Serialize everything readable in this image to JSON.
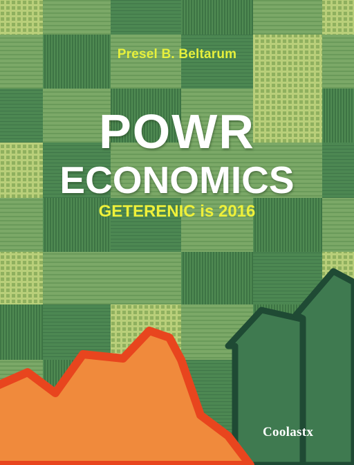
{
  "cover": {
    "author": "Presel B. Beltarum",
    "title_line1": "POWR",
    "title_line2": "ECONOMICS",
    "subtitle": "GETERENIC is 2016",
    "publisher": "Coolastx"
  },
  "colors": {
    "background": "#6f9e62",
    "title": "#ffffff",
    "accent_text": "#e6f03c",
    "mountain_fill": "#f08a3c",
    "mountain_outline": "#e8451e",
    "buildings": "#3f7a50",
    "building_outline": "#1f4a34"
  }
}
